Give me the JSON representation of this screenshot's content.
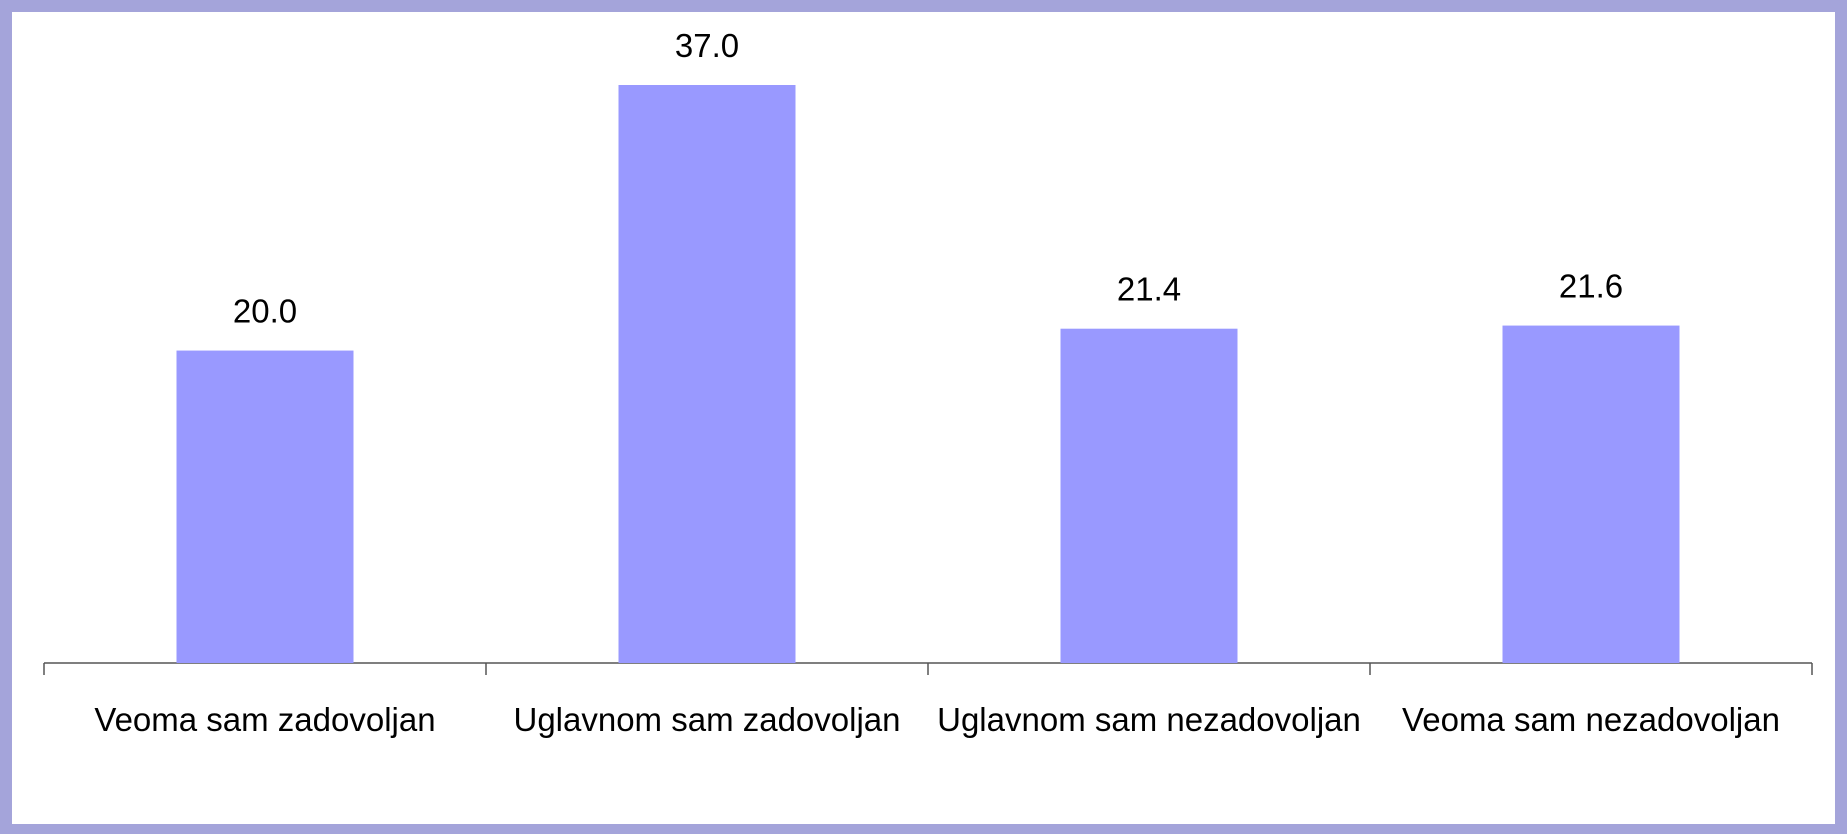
{
  "chart_data": {
    "type": "bar",
    "categories": [
      "Veoma sam zadovoljan",
      "Uglavnom sam zadovoljan",
      "Uglavnom sam nezadovoljan",
      "Veoma sam nezadovoljan"
    ],
    "values": [
      20.0,
      37.0,
      21.4,
      21.6
    ],
    "value_labels": [
      "20.0",
      "37.0",
      "21.4",
      "21.6"
    ],
    "color": "#9999ff"
  }
}
